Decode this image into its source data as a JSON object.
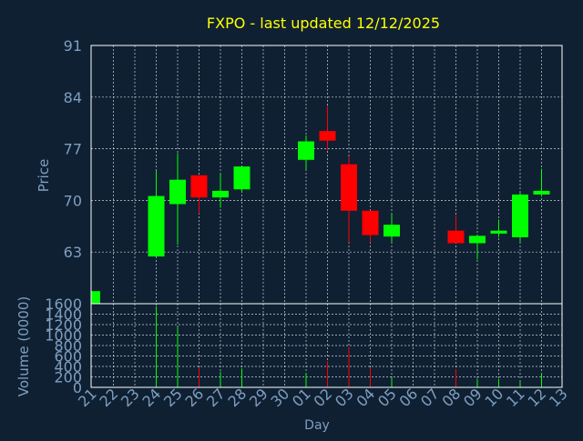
{
  "title": "FXPO - last updated 12/12/2025",
  "colors": {
    "background": "#0f2033",
    "title": "#ffff00",
    "axis_text": "#7f9fbf",
    "frame": "#ffffff",
    "grid": "#ffffff",
    "up": "#00ff00",
    "down": "#ff0000"
  },
  "chart_data": [
    {
      "type": "candlestick",
      "ylabel": "Price",
      "ylim": [
        56,
        91
      ],
      "yticks": [
        63,
        70,
        77,
        84,
        91
      ],
      "grid": true,
      "categories": [
        "21",
        "22",
        "23",
        "24",
        "25",
        "26",
        "27",
        "28",
        "29",
        "30",
        "01",
        "02",
        "03",
        "04",
        "05",
        "06",
        "07",
        "08",
        "09",
        "10",
        "11",
        "12",
        "13"
      ],
      "candles": [
        {
          "x": "21",
          "open": 54.0,
          "close": 57.7,
          "high": 57.7,
          "low": 54.0
        },
        {
          "x": "24",
          "open": 62.4,
          "close": 70.6,
          "high": 74.0,
          "low": 62.4
        },
        {
          "x": "25",
          "open": 69.5,
          "close": 72.8,
          "high": 76.4,
          "low": 64.0
        },
        {
          "x": "26",
          "open": 73.4,
          "close": 70.4,
          "high": 73.4,
          "low": 68.2
        },
        {
          "x": "27",
          "open": 70.4,
          "close": 71.3,
          "high": 73.6,
          "low": 69.0
        },
        {
          "x": "28",
          "open": 71.5,
          "close": 74.6,
          "high": 74.6,
          "low": 71.1
        },
        {
          "x": "01",
          "open": 75.5,
          "close": 78.0,
          "high": 78.8,
          "low": 74.2
        },
        {
          "x": "02",
          "open": 79.4,
          "close": 78.1,
          "high": 82.8,
          "low": 76.8
        },
        {
          "x": "03",
          "open": 74.9,
          "close": 68.6,
          "high": 76.0,
          "low": 64.3
        },
        {
          "x": "04",
          "open": 68.6,
          "close": 65.3,
          "high": 68.6,
          "low": 64.3
        },
        {
          "x": "05",
          "open": 65.1,
          "close": 66.7,
          "high": 68.1,
          "low": 64.4
        },
        {
          "x": "08",
          "open": 65.9,
          "close": 64.2,
          "high": 68.0,
          "low": 64.2
        },
        {
          "x": "09",
          "open": 64.2,
          "close": 65.2,
          "high": 65.4,
          "low": 62.0
        },
        {
          "x": "10",
          "open": 65.5,
          "close": 65.9,
          "high": 67.4,
          "low": 65.0
        },
        {
          "x": "11",
          "open": 65.0,
          "close": 70.8,
          "high": 71.1,
          "low": 64.3
        },
        {
          "x": "12",
          "open": 70.8,
          "close": 71.3,
          "high": 74.3,
          "low": 70.5
        }
      ]
    },
    {
      "type": "bar",
      "xlabel": "Day",
      "ylabel": "Volume (0000)",
      "ylim": [
        0,
        1600
      ],
      "yticks": [
        0,
        200,
        400,
        600,
        800,
        1000,
        1200,
        1400,
        1600
      ],
      "grid": true,
      "categories": [
        "21",
        "22",
        "23",
        "24",
        "25",
        "26",
        "27",
        "28",
        "29",
        "30",
        "01",
        "02",
        "03",
        "04",
        "05",
        "06",
        "07",
        "08",
        "09",
        "10",
        "11",
        "12",
        "13"
      ],
      "values": [
        0,
        0,
        0,
        1550,
        1150,
        380,
        300,
        360,
        0,
        0,
        280,
        500,
        760,
        380,
        180,
        0,
        0,
        350,
        160,
        160,
        120,
        260,
        0
      ],
      "directions": [
        "up",
        "",
        "",
        "up",
        "up",
        "down",
        "up",
        "up",
        "",
        "",
        "up",
        "down",
        "down",
        "down",
        "up",
        "",
        "",
        "down",
        "up",
        "up",
        "up",
        "up",
        ""
      ]
    }
  ]
}
